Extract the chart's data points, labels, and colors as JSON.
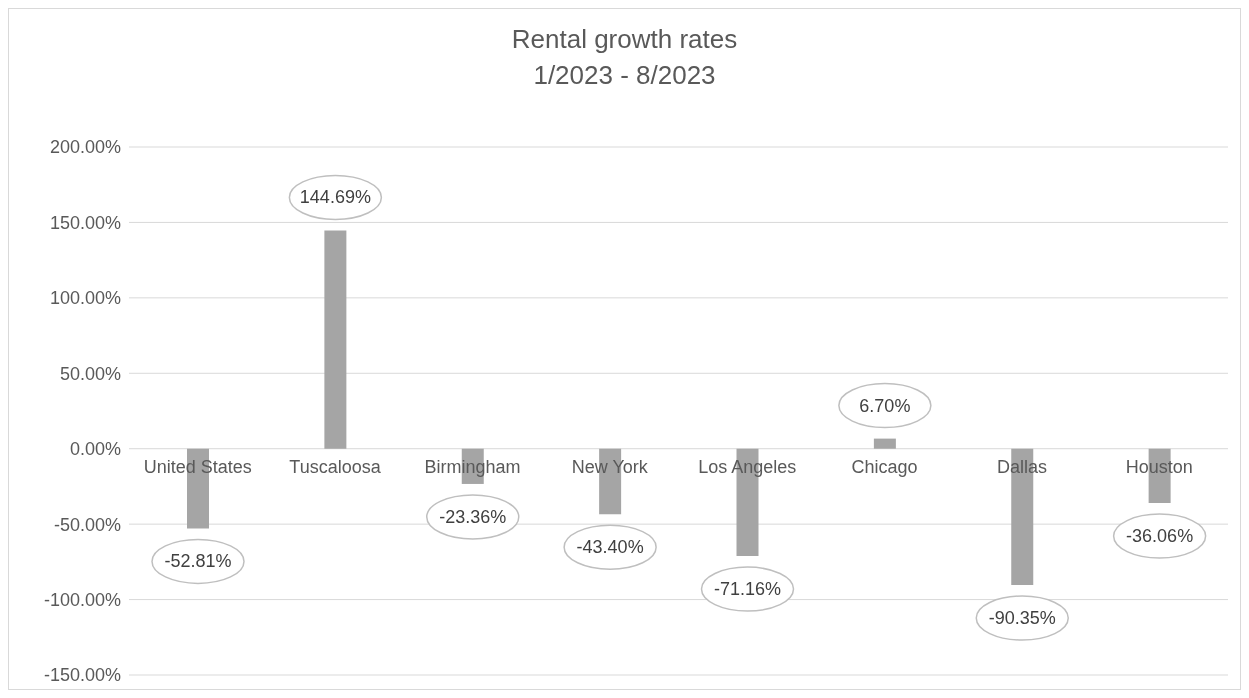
{
  "chart_data": {
    "type": "bar",
    "title": "Rental growth rates",
    "subtitle": "1/2023 - 8/2023",
    "categories": [
      "United States",
      "Tuscaloosa",
      "Birmingham",
      "New York",
      "Los Angeles",
      "Chicago",
      "Dallas",
      "Houston"
    ],
    "values": [
      -52.81,
      144.69,
      -23.36,
      -43.4,
      -71.16,
      6.7,
      -90.35,
      -36.06
    ],
    "value_labels": [
      "-52.81%",
      "144.69%",
      "-23.36%",
      "-43.40%",
      "-71.16%",
      "6.70%",
      "-90.35%",
      "-36.06%"
    ],
    "color": "#a5a5a5",
    "ylim": [
      -150,
      200
    ],
    "yticks": [
      {
        "value": -150,
        "label": "-150.00%"
      },
      {
        "value": -100,
        "label": "-100.00%"
      },
      {
        "value": -50,
        "label": "-50.00%"
      },
      {
        "value": 0,
        "label": "0.00%"
      },
      {
        "value": 50,
        "label": "50.00%"
      },
      {
        "value": 100,
        "label": "100.00%"
      },
      {
        "value": 150,
        "label": "150.00%"
      },
      {
        "value": 200,
        "label": "200.00%"
      }
    ],
    "grid": "y",
    "legend": false
  }
}
